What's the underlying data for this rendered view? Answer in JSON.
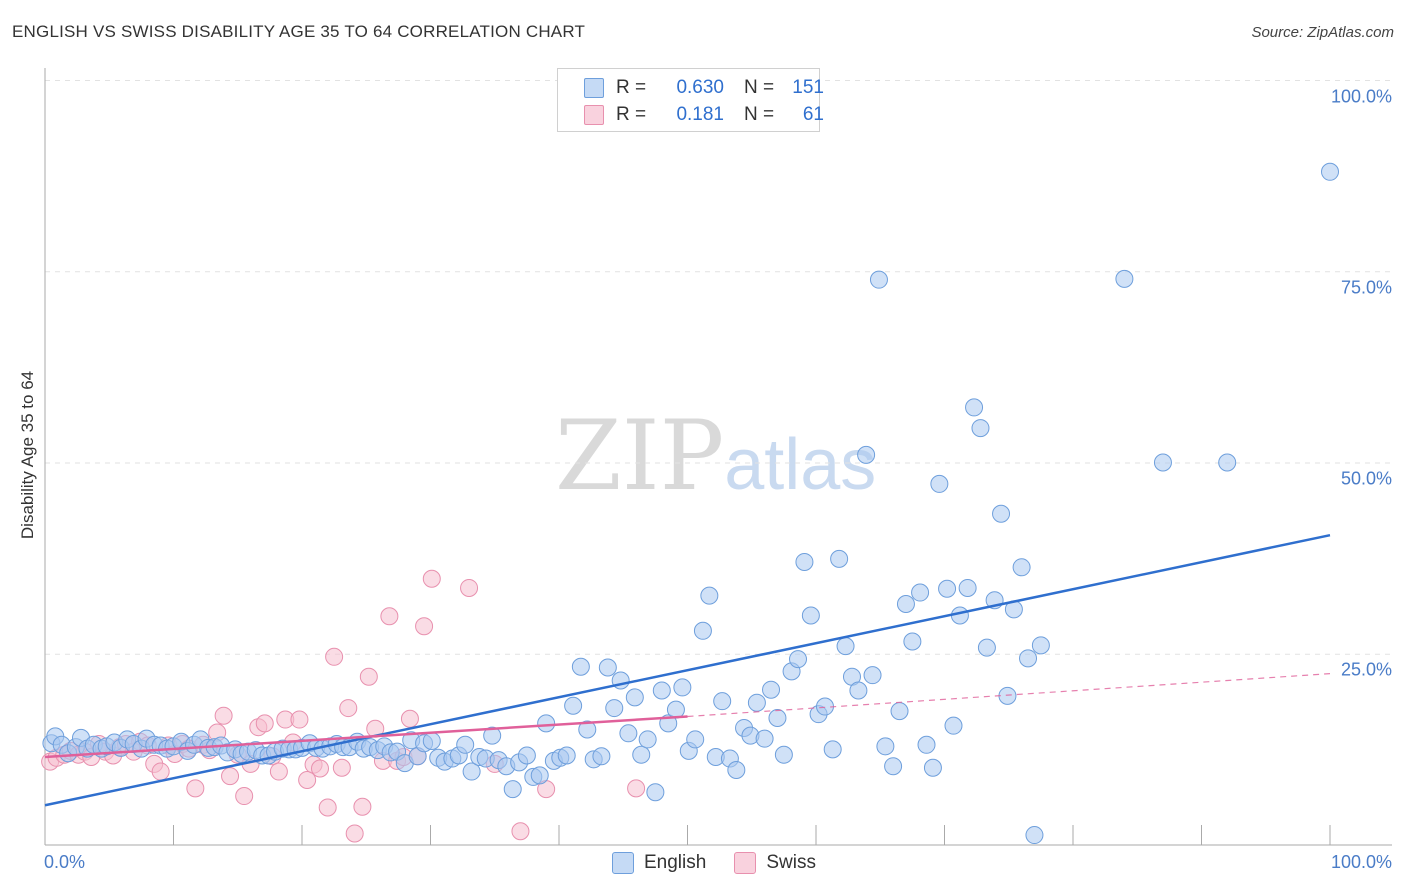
{
  "header": {
    "title": "ENGLISH VS SWISS DISABILITY AGE 35 TO 64 CORRELATION CHART",
    "source": "Source: ZipAtlas.com"
  },
  "watermark": {
    "zip": "ZIP",
    "atlas": "atlas"
  },
  "legend": {
    "rows": [
      {
        "r_label": "R =",
        "r_value": "0.630",
        "n_label": "N =",
        "n_value": "151",
        "color": "#a9c8f0"
      },
      {
        "r_label": "R =",
        "r_value": "0.181",
        "n_label": "N =",
        "n_value": "61",
        "color": "#f6bfd0"
      }
    ]
  },
  "bottom_legend": {
    "english": "English",
    "swiss": "Swiss"
  },
  "colors": {
    "english_fill": "#a9c8f0",
    "english_stroke": "#6e9fdc",
    "english_line": "#2f6fce",
    "swiss_fill": "#f6bfd0",
    "swiss_stroke": "#e890ae",
    "swiss_line": "#e0609a",
    "grid": "#e2e2e2",
    "tick_label": "#4a7cc7"
  },
  "chart_data": {
    "type": "scatter",
    "title": "ENGLISH VS SWISS DISABILITY AGE 35 TO 64 CORRELATION CHART",
    "xlabel": "",
    "ylabel": "Disability Age 35 to 64",
    "xlim": [
      0,
      100
    ],
    "ylim": [
      0,
      100
    ],
    "x_tick_labels": [
      "0.0%",
      "100.0%"
    ],
    "y_ticks": [
      25,
      50,
      75,
      100
    ],
    "y_tick_labels": [
      "25.0%",
      "50.0%",
      "75.0%",
      "100.0%"
    ],
    "grid": true,
    "legend_position": "top-center",
    "series": [
      {
        "name": "English",
        "r": 0.63,
        "n": 151,
        "trend": {
          "x": [
            0,
            100
          ],
          "y": [
            5.2,
            40.5
          ]
        },
        "points": [
          [
            0.5,
            13.3
          ],
          [
            0.8,
            14.2
          ],
          [
            1.3,
            13.1
          ],
          [
            1.8,
            12.0
          ],
          [
            2.4,
            12.8
          ],
          [
            2.8,
            14.0
          ],
          [
            3.3,
            12.6
          ],
          [
            3.8,
            13.1
          ],
          [
            4.4,
            12.6
          ],
          [
            4.8,
            12.9
          ],
          [
            5.4,
            13.4
          ],
          [
            5.9,
            12.7
          ],
          [
            6.4,
            13.8
          ],
          [
            6.9,
            13.2
          ],
          [
            7.5,
            12.6
          ],
          [
            7.9,
            13.9
          ],
          [
            8.5,
            13.1
          ],
          [
            9.0,
            13.0
          ],
          [
            9.5,
            12.6
          ],
          [
            10.0,
            12.9
          ],
          [
            10.6,
            13.5
          ],
          [
            11.1,
            12.3
          ],
          [
            11.6,
            13.1
          ],
          [
            12.1,
            13.8
          ],
          [
            12.7,
            12.7
          ],
          [
            13.2,
            12.8
          ],
          [
            13.7,
            13.0
          ],
          [
            14.2,
            12.1
          ],
          [
            14.8,
            12.5
          ],
          [
            15.3,
            11.9
          ],
          [
            15.8,
            12.2
          ],
          [
            16.4,
            12.4
          ],
          [
            16.9,
            11.7
          ],
          [
            17.4,
            11.7
          ],
          [
            17.9,
            12.2
          ],
          [
            18.5,
            12.6
          ],
          [
            19.0,
            12.5
          ],
          [
            19.5,
            12.5
          ],
          [
            20.0,
            12.7
          ],
          [
            20.6,
            13.3
          ],
          [
            21.1,
            12.7
          ],
          [
            21.6,
            12.6
          ],
          [
            22.2,
            12.9
          ],
          [
            22.7,
            13.2
          ],
          [
            23.2,
            12.8
          ],
          [
            23.7,
            12.8
          ],
          [
            24.3,
            13.5
          ],
          [
            24.8,
            12.6
          ],
          [
            25.3,
            12.8
          ],
          [
            25.9,
            12.4
          ],
          [
            26.4,
            12.9
          ],
          [
            26.9,
            12.1
          ],
          [
            27.4,
            12.2
          ],
          [
            28.0,
            10.7
          ],
          [
            28.5,
            13.7
          ],
          [
            29.0,
            11.6
          ],
          [
            29.5,
            13.3
          ],
          [
            30.1,
            13.6
          ],
          [
            30.6,
            11.4
          ],
          [
            31.1,
            10.9
          ],
          [
            31.7,
            11.3
          ],
          [
            32.2,
            11.7
          ],
          [
            32.7,
            13.1
          ],
          [
            33.2,
            9.6
          ],
          [
            33.8,
            11.5
          ],
          [
            34.3,
            11.3
          ],
          [
            34.8,
            14.3
          ],
          [
            35.3,
            11.1
          ],
          [
            35.9,
            10.3
          ],
          [
            36.4,
            7.3
          ],
          [
            36.9,
            10.8
          ],
          [
            37.5,
            11.7
          ],
          [
            38.0,
            8.9
          ],
          [
            38.5,
            9.1
          ],
          [
            39.0,
            15.9
          ],
          [
            39.6,
            11.0
          ],
          [
            40.1,
            11.4
          ],
          [
            40.6,
            11.7
          ],
          [
            41.1,
            18.2
          ],
          [
            41.7,
            23.3
          ],
          [
            42.2,
            15.1
          ],
          [
            42.7,
            11.2
          ],
          [
            43.3,
            11.6
          ],
          [
            43.8,
            23.2
          ],
          [
            44.3,
            17.9
          ],
          [
            44.8,
            21.5
          ],
          [
            45.4,
            14.6
          ],
          [
            45.9,
            19.3
          ],
          [
            46.4,
            11.8
          ],
          [
            46.9,
            13.8
          ],
          [
            47.5,
            6.9
          ],
          [
            48.0,
            20.2
          ],
          [
            48.5,
            15.9
          ],
          [
            49.1,
            17.7
          ],
          [
            49.6,
            20.6
          ],
          [
            50.1,
            12.3
          ],
          [
            50.6,
            13.8
          ],
          [
            51.2,
            28.0
          ],
          [
            51.7,
            32.6
          ],
          [
            52.2,
            11.5
          ],
          [
            52.7,
            18.8
          ],
          [
            53.3,
            11.3
          ],
          [
            53.8,
            9.8
          ],
          [
            54.4,
            15.3
          ],
          [
            54.9,
            14.3
          ],
          [
            55.4,
            18.6
          ],
          [
            56.0,
            13.9
          ],
          [
            56.5,
            20.3
          ],
          [
            57.0,
            16.6
          ],
          [
            57.5,
            11.8
          ],
          [
            58.1,
            22.7
          ],
          [
            58.6,
            24.3
          ],
          [
            59.1,
            37.0
          ],
          [
            59.6,
            30.0
          ],
          [
            60.2,
            17.1
          ],
          [
            60.7,
            18.1
          ],
          [
            61.3,
            12.5
          ],
          [
            61.8,
            37.4
          ],
          [
            62.3,
            26.0
          ],
          [
            62.8,
            22.0
          ],
          [
            63.3,
            20.2
          ],
          [
            63.9,
            51.0
          ],
          [
            64.4,
            22.2
          ],
          [
            64.9,
            73.9
          ],
          [
            65.4,
            12.9
          ],
          [
            66.0,
            10.3
          ],
          [
            66.5,
            17.5
          ],
          [
            67.0,
            31.5
          ],
          [
            67.5,
            26.6
          ],
          [
            68.1,
            33.0
          ],
          [
            68.6,
            13.1
          ],
          [
            69.1,
            10.1
          ],
          [
            69.6,
            47.2
          ],
          [
            70.2,
            33.5
          ],
          [
            70.7,
            15.6
          ],
          [
            71.2,
            30.0
          ],
          [
            71.8,
            33.6
          ],
          [
            72.3,
            57.2
          ],
          [
            72.8,
            54.5
          ],
          [
            73.3,
            25.8
          ],
          [
            73.9,
            32.0
          ],
          [
            74.4,
            43.3
          ],
          [
            74.9,
            19.5
          ],
          [
            75.4,
            30.8
          ],
          [
            76.0,
            36.3
          ],
          [
            76.5,
            24.4
          ],
          [
            77.0,
            1.3
          ],
          [
            77.5,
            26.1
          ],
          [
            84.0,
            74.0
          ],
          [
            87.0,
            50.0
          ],
          [
            92.0,
            50.0
          ],
          [
            100.0,
            88.0
          ]
        ]
      },
      {
        "name": "Swiss",
        "r": 0.181,
        "n": 61,
        "trend": {
          "x": [
            0,
            50
          ],
          "y": [
            11.5,
            16.8
          ]
        },
        "trend_dashed": {
          "x": [
            50,
            100
          ],
          "y": [
            16.8,
            22.4
          ]
        },
        "points": [
          [
            0.4,
            10.9
          ],
          [
            0.9,
            11.4
          ],
          [
            1.5,
            11.8
          ],
          [
            2.0,
            12.3
          ],
          [
            2.6,
            11.8
          ],
          [
            3.1,
            12.2
          ],
          [
            3.6,
            11.5
          ],
          [
            4.2,
            13.2
          ],
          [
            4.7,
            12.2
          ],
          [
            5.3,
            11.7
          ],
          [
            5.8,
            12.8
          ],
          [
            6.3,
            13.2
          ],
          [
            6.9,
            12.2
          ],
          [
            7.4,
            13.5
          ],
          [
            8.0,
            13.0
          ],
          [
            8.5,
            10.6
          ],
          [
            9.0,
            9.6
          ],
          [
            9.6,
            13.0
          ],
          [
            10.1,
            11.9
          ],
          [
            10.7,
            13.2
          ],
          [
            11.2,
            12.6
          ],
          [
            11.7,
            7.4
          ],
          [
            12.3,
            13.1
          ],
          [
            12.8,
            12.4
          ],
          [
            13.4,
            14.7
          ],
          [
            13.9,
            16.9
          ],
          [
            14.4,
            9.0
          ],
          [
            15.0,
            11.8
          ],
          [
            15.5,
            6.4
          ],
          [
            16.0,
            10.6
          ],
          [
            16.6,
            15.4
          ],
          [
            17.1,
            15.9
          ],
          [
            17.7,
            11.6
          ],
          [
            18.2,
            9.6
          ],
          [
            18.7,
            16.4
          ],
          [
            19.3,
            13.4
          ],
          [
            19.8,
            16.4
          ],
          [
            20.4,
            8.5
          ],
          [
            20.9,
            10.5
          ],
          [
            21.4,
            10.0
          ],
          [
            22.0,
            4.9
          ],
          [
            22.5,
            24.6
          ],
          [
            23.1,
            10.1
          ],
          [
            23.6,
            17.9
          ],
          [
            24.1,
            1.5
          ],
          [
            24.7,
            5.0
          ],
          [
            25.2,
            22.0
          ],
          [
            25.7,
            15.2
          ],
          [
            26.3,
            11.0
          ],
          [
            26.8,
            29.9
          ],
          [
            27.4,
            11.0
          ],
          [
            27.9,
            11.5
          ],
          [
            28.4,
            16.5
          ],
          [
            29.0,
            11.6
          ],
          [
            29.5,
            28.6
          ],
          [
            30.1,
            34.8
          ],
          [
            33.0,
            33.6
          ],
          [
            35.0,
            10.6
          ],
          [
            37.0,
            1.8
          ],
          [
            39.0,
            7.3
          ],
          [
            46.0,
            7.4
          ]
        ]
      }
    ]
  }
}
